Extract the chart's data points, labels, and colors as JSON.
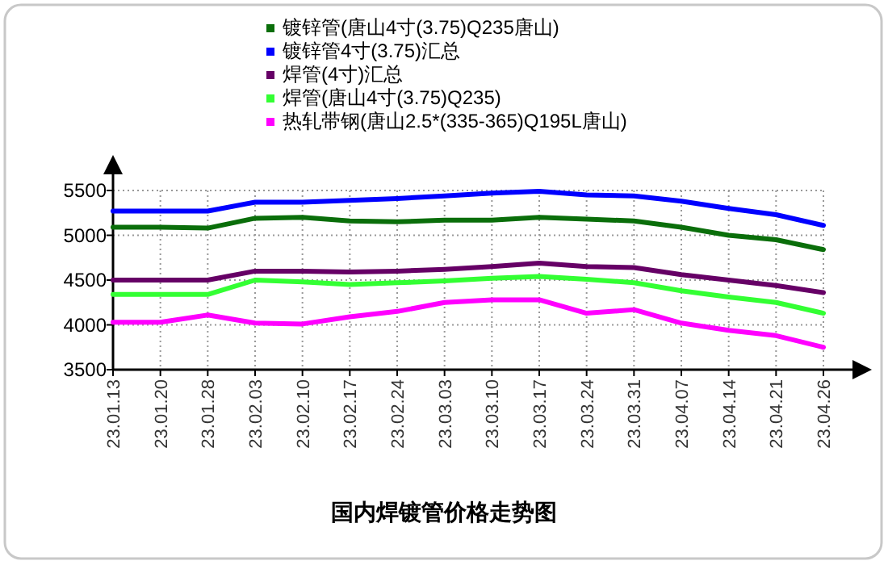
{
  "chart_data": {
    "type": "line",
    "title": "国内焊镀管价格走势图",
    "categories": [
      "23.01.13",
      "23.01.20",
      "23.01.28",
      "23.02.03",
      "23.02.10",
      "23.02.17",
      "23.02.24",
      "23.03.03",
      "23.03.10",
      "23.03.17",
      "23.03.24",
      "23.03.31",
      "23.04.07",
      "23.04.14",
      "23.04.21",
      "23.04.26"
    ],
    "series": [
      {
        "name": "镀锌管(唐山4寸(3.75)Q235唐山)",
        "color": "#0a6e0a",
        "values": [
          5090,
          5090,
          5080,
          5190,
          5200,
          5160,
          5150,
          5170,
          5170,
          5200,
          5180,
          5160,
          5090,
          5000,
          4950,
          4840
        ]
      },
      {
        "name": "镀锌管4寸(3.75)汇总",
        "color": "#0000ff",
        "values": [
          5270,
          5270,
          5270,
          5370,
          5370,
          5390,
          5410,
          5440,
          5470,
          5490,
          5450,
          5440,
          5380,
          5300,
          5230,
          5110
        ]
      },
      {
        "name": "焊管(4寸)汇总",
        "color": "#660066",
        "values": [
          4500,
          4500,
          4500,
          4600,
          4600,
          4590,
          4600,
          4620,
          4650,
          4690,
          4650,
          4640,
          4560,
          4500,
          4440,
          4360
        ]
      },
      {
        "name": "焊管(唐山4寸(3.75)Q235)",
        "color": "#33ff33",
        "values": [
          4340,
          4340,
          4340,
          4500,
          4480,
          4450,
          4470,
          4490,
          4520,
          4540,
          4510,
          4470,
          4380,
          4310,
          4250,
          4130
        ]
      },
      {
        "name": "热轧带钢(唐山2.5*(335-365)Q195L唐山)",
        "color": "#ff00ff",
        "values": [
          4030,
          4030,
          4110,
          4020,
          4010,
          4090,
          4150,
          4250,
          4280,
          4280,
          4130,
          4170,
          4020,
          3940,
          3880,
          3750
        ]
      }
    ],
    "ylim": [
      3500,
      5500
    ],
    "yticks": [
      3500,
      4000,
      4500,
      5000,
      5500
    ],
    "grid": true,
    "legend": "top",
    "marker": "none",
    "line_style": "solid"
  }
}
